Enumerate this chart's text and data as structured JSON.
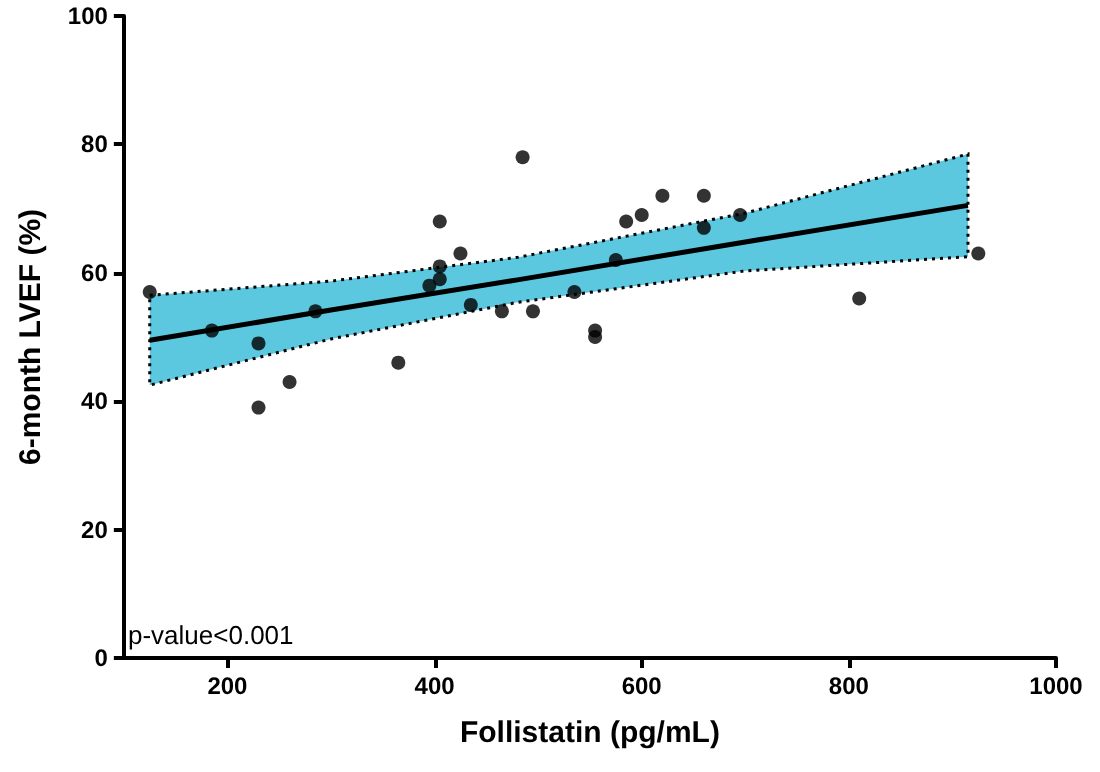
{
  "chart_data": {
    "type": "scatter",
    "xlabel": "Follistatin (pg/mL)",
    "ylabel": "6-month LVEF (%)",
    "xlim": [
      100,
      1000
    ],
    "xticks": [
      200,
      400,
      600,
      800,
      1000
    ],
    "ylim": [
      0,
      100
    ],
    "yticks": [
      0,
      20,
      40,
      60,
      80,
      100
    ],
    "grid": false,
    "marker": "circle",
    "annotations": [
      "p-value<0.001"
    ],
    "series": [
      {
        "color": "#000000",
        "x": [
          125,
          185,
          230,
          230,
          260,
          285,
          365,
          395,
          405,
          405,
          405,
          425,
          435,
          465,
          485,
          495,
          535,
          555,
          555,
          575,
          585,
          600,
          620,
          660,
          660,
          695,
          810,
          925
        ],
        "values": [
          57,
          51,
          49,
          39,
          43,
          54,
          46,
          58,
          61,
          59,
          68,
          63,
          55,
          54,
          78,
          54,
          57,
          51,
          50,
          62,
          68,
          69,
          72,
          72,
          67,
          69,
          56,
          63
        ]
      },
      {
        "type": "line",
        "color": "#000000",
        "marker": "none",
        "x": [
          125,
          300,
          480,
          700,
          915
        ],
        "values": [
          49.5,
          54.2,
          58.9,
          64.8,
          70.5
        ],
        "lower": [
          42.5,
          49.7,
          55.4,
          60.3,
          62.5
        ],
        "upper": [
          56.5,
          58.7,
          62.4,
          69.3,
          78.5
        ]
      }
    ]
  }
}
